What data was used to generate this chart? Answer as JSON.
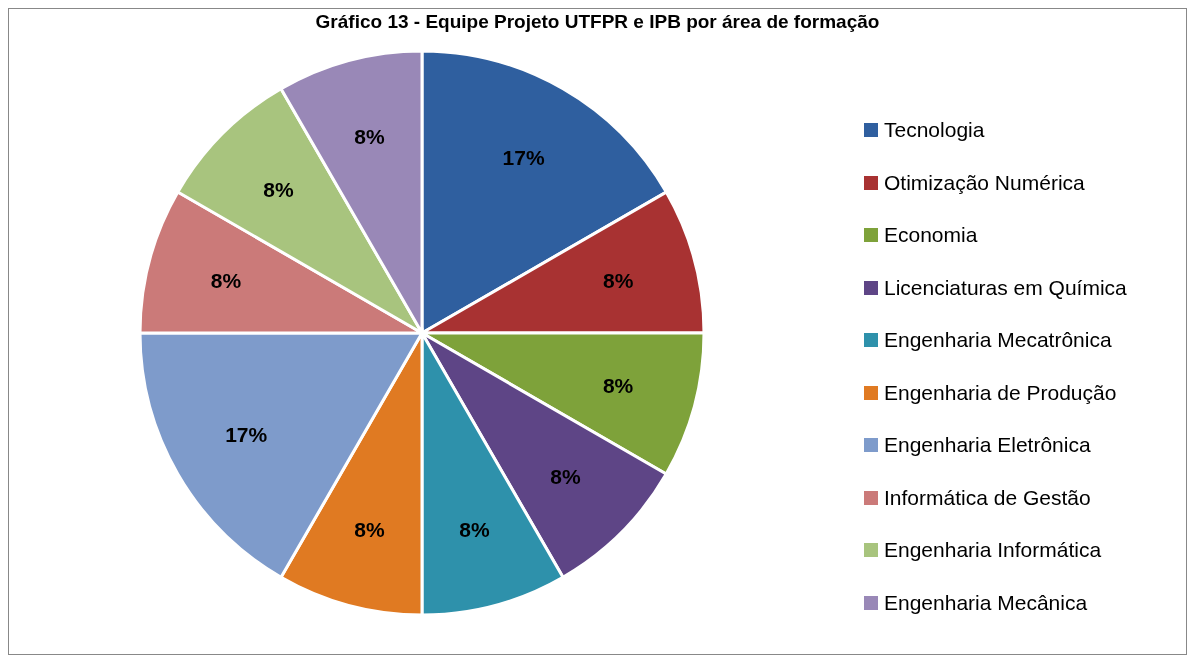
{
  "chart_data": {
    "type": "pie",
    "title": "Gráfico 13 - Equipe Projeto UTFPR e IPB por área de formação",
    "categories": [
      "Tecnologia",
      "Otimização Numérica",
      "Economia",
      "Licenciaturas em Química",
      "Engenharia Mecatrônica",
      "Engenharia de Produção",
      "Engenharia Eletrônica",
      "Informática de Gestão",
      "Engenharia Informática",
      "Engenharia Mecânica"
    ],
    "values": [
      16.67,
      8.33,
      8.33,
      8.33,
      8.33,
      8.33,
      16.67,
      8.33,
      8.33,
      8.33
    ],
    "value_labels": [
      "17%",
      "8%",
      "8%",
      "8%",
      "8%",
      "8%",
      "17%",
      "8%",
      "8%",
      "8%"
    ],
    "colors": [
      "#2f5f9f",
      "#a83232",
      "#7ea23a",
      "#5e4586",
      "#2e91ab",
      "#e07a22",
      "#7e9bcb",
      "#cb7a79",
      "#a8c47e",
      "#9988b7"
    ],
    "legend": "right"
  }
}
